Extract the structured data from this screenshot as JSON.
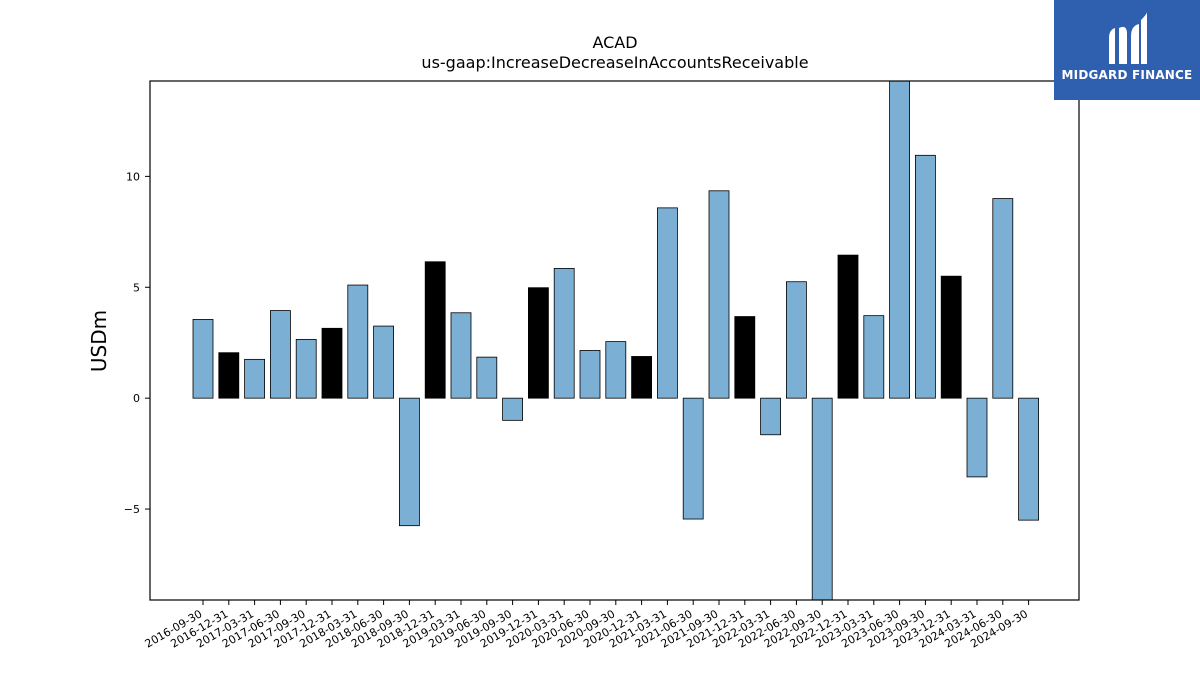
{
  "chart_data": {
    "type": "bar",
    "title": "ACAD",
    "subtitle": "us-gaap:IncreaseDecreaseInAccountsReceivable",
    "xlabel": "",
    "ylabel": "USDm",
    "ylim": [
      -9.1,
      14.3
    ],
    "yticks": [
      -5,
      0,
      5,
      10
    ],
    "ytick_labels": [
      "−5",
      "0",
      "5",
      "10"
    ],
    "grid": false,
    "colors": {
      "quarter": "#7bafd4",
      "year_end": "#000000",
      "edge": "#000000"
    },
    "categories": [
      "2016-09-30",
      "2016-12-31",
      "2017-03-31",
      "2017-06-30",
      "2017-09-30",
      "2017-12-31",
      "2018-03-31",
      "2018-06-30",
      "2018-09-30",
      "2018-12-31",
      "2019-03-31",
      "2019-06-30",
      "2019-09-30",
      "2019-12-31",
      "2020-03-31",
      "2020-06-30",
      "2020-09-30",
      "2020-12-31",
      "2021-03-31",
      "2021-06-30",
      "2021-09-30",
      "2021-12-31",
      "2022-03-31",
      "2022-06-30",
      "2022-09-30",
      "2022-12-31",
      "2023-03-31",
      "2023-06-30",
      "2023-09-30",
      "2023-12-31",
      "2024-03-31",
      "2024-06-30",
      "2024-09-30"
    ],
    "values": [
      3.55,
      2.05,
      1.75,
      3.95,
      2.65,
      3.15,
      5.1,
      3.25,
      -5.75,
      6.15,
      3.85,
      1.85,
      -1.0,
      4.98,
      5.85,
      2.15,
      2.55,
      1.88,
      8.58,
      -5.45,
      9.35,
      3.68,
      -1.65,
      5.25,
      -9.1,
      6.45,
      3.72,
      14.3,
      10.95,
      5.5,
      -3.55,
      9.0,
      -5.5
    ],
    "highlight": [
      false,
      true,
      false,
      false,
      false,
      true,
      false,
      false,
      false,
      true,
      false,
      false,
      false,
      true,
      false,
      false,
      false,
      true,
      false,
      false,
      false,
      true,
      false,
      false,
      false,
      true,
      false,
      false,
      false,
      true,
      false,
      false,
      false
    ]
  },
  "logo": {
    "text": "MIDGARD FINANCE",
    "background": "#2f5faf",
    "icon": "midgard-logo-icon"
  }
}
